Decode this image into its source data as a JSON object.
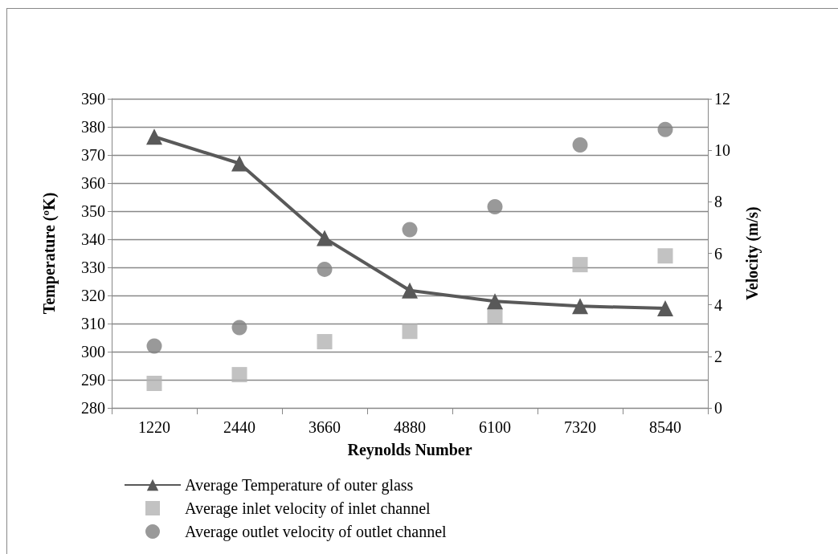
{
  "chart_data": {
    "type": "line",
    "xlabel": "Reynolds Number",
    "ylabel": "Temperature (ºK)",
    "y2label": "Velocity (m/s)",
    "categories": [
      "1220",
      "2440",
      "3660",
      "4880",
      "6100",
      "7320",
      "8540"
    ],
    "series": [
      {
        "name": "Average Temperature of outer glass",
        "marker": "triangle",
        "color": "#595959",
        "values": [
          376.5,
          367,
          340.4,
          321.8,
          317.9,
          316.2,
          315.4
        ]
      },
      {
        "name": "Average inlet velocity of inlet channel",
        "type": "scatter",
        "marker": "square",
        "axis": "y2",
        "color": "#b3b3b3",
        "values": [
          0.95,
          1.29,
          2.57,
          2.97,
          3.57,
          5.56,
          5.9
        ]
      },
      {
        "name": "Average outlet velocity of outlet channel",
        "type": "scatter",
        "marker": "circle",
        "axis": "y2",
        "color": "#808080",
        "values": [
          2.4,
          3.12,
          5.38,
          6.92,
          7.81,
          10.21,
          10.81
        ]
      }
    ],
    "ylim": [
      280,
      390
    ],
    "yticks": [
      280,
      290,
      300,
      310,
      320,
      330,
      340,
      350,
      360,
      370,
      380,
      390
    ],
    "y2lim": [
      0,
      12
    ],
    "y2ticks": [
      0,
      2,
      4,
      6,
      8,
      10,
      12
    ],
    "grid": "y",
    "legend": "bottom"
  }
}
